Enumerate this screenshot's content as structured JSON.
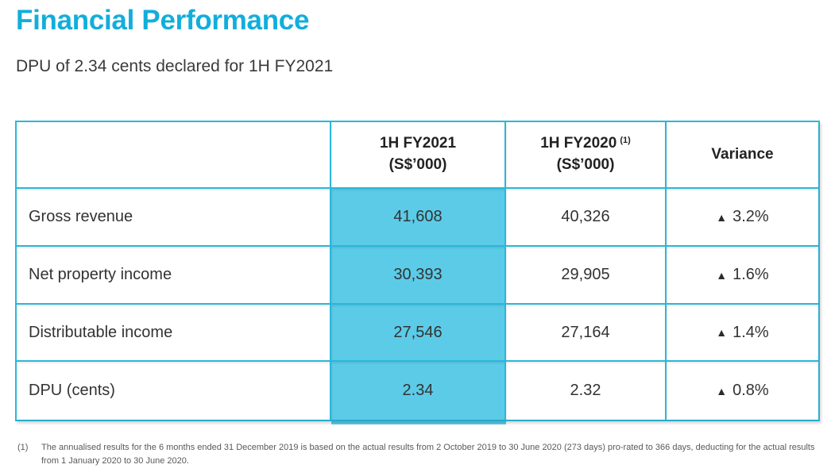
{
  "title": "Financial Performance",
  "subtitle": "DPU of 2.34 cents declared for 1H FY2021",
  "colors": {
    "accent_cyan": "#12AEDB",
    "table_border": "#2AB7DA",
    "highlight_fill": "#5CCBE7",
    "body_text": "#333333",
    "footnote_text": "#58595B"
  },
  "table": {
    "header": {
      "col1": "",
      "col2_line1": "1H FY2021",
      "col2_line2": "(S$’000)",
      "col3_line1": "1H FY2020",
      "col3_sup": "(1)",
      "col3_line2": "(S$’000)",
      "col4": "Variance"
    },
    "rows": [
      {
        "label": "Gross revenue",
        "fy2021": "41,608",
        "fy2020": "40,326",
        "variance_arrow": "▲",
        "variance_value": "3.2%"
      },
      {
        "label": "Net property income",
        "fy2021": "30,393",
        "fy2020": "29,905",
        "variance_arrow": "▲",
        "variance_value": "1.6%"
      },
      {
        "label": "Distributable income",
        "fy2021": "27,546",
        "fy2020": "27,164",
        "variance_arrow": "▲",
        "variance_value": "1.4%"
      },
      {
        "label": "DPU (cents)",
        "fy2021": "2.34",
        "fy2020": "2.32",
        "variance_arrow": "▲",
        "variance_value": "0.8%"
      }
    ]
  },
  "footnote": {
    "marker": "(1)",
    "text": "The annualised results for the 6 months ended 31 December 2019 is based on the actual results from 2 October 2019 to 30 June 2020 (273 days) pro-rated to 366 days, deducting for the actual results from 1 January 2020 to 30 June 2020."
  }
}
